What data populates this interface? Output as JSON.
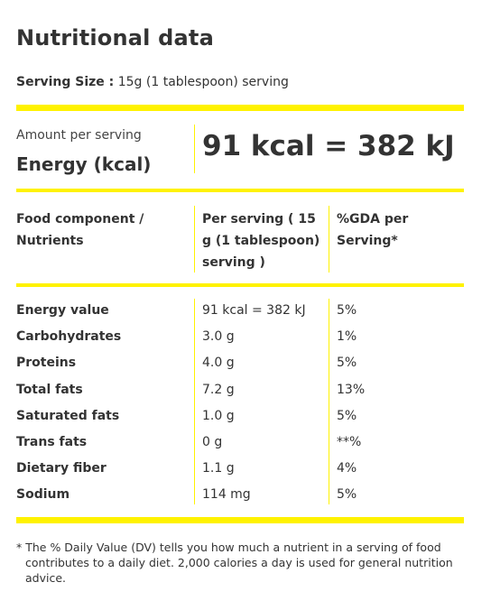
{
  "title": "Nutritional data",
  "serving": {
    "label": "Serving Size :",
    "value": "15g (1 tablespoon) serving"
  },
  "energy": {
    "amount_label": "Amount per serving",
    "energy_label": "Energy (kcal)",
    "value": "91 kcal = 382 kJ"
  },
  "table": {
    "headers": {
      "component": "Food component / Nutrients",
      "per_serving": "Per serving ( 15 g (1 tablespoon) serving )",
      "gda": "%GDA per Serving*"
    },
    "rows": [
      {
        "name": "Energy value",
        "amount": "91 kcal = 382 kJ",
        "gda": "5%"
      },
      {
        "name": "Carbohydrates",
        "amount": "3.0 g",
        "gda": "1%"
      },
      {
        "name": "Proteins",
        "amount": "4.0 g",
        "gda": "5%"
      },
      {
        "name": "Total fats",
        "amount": "7.2 g",
        "gda": "13%"
      },
      {
        "name": "Saturated fats",
        "amount": "1.0 g",
        "gda": "5%"
      },
      {
        "name": "Trans fats",
        "amount": "0 g",
        "gda": "**%"
      },
      {
        "name": "Dietary fiber",
        "amount": "1.1 g",
        "gda": "4%"
      },
      {
        "name": "Sodium",
        "amount": "114 mg",
        "gda": "5%"
      }
    ]
  },
  "footnote": "* The % Daily Value (DV) tells you how much a nutrient in a serving of food contributes to a daily diet. 2,000 calories a day is used for general nutrition advice.",
  "colors": {
    "accent": "#fff200",
    "text": "#333333"
  }
}
